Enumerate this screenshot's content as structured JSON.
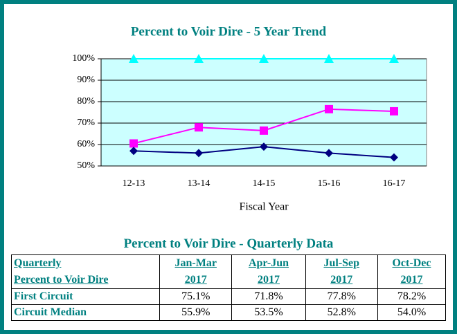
{
  "chart_data": {
    "type": "line",
    "title": "Percent to Voir Dire - 5 Year Trend",
    "x_label": "Fiscal Year",
    "categories": [
      "12-13",
      "13-14",
      "14-15",
      "15-16",
      "16-17"
    ],
    "series": [
      {
        "color": "#00ffff",
        "marker": "triangle",
        "values": [
          100,
          100,
          100,
          100,
          100
        ]
      },
      {
        "color": "#ff00ff",
        "marker": "square",
        "values": [
          60.5,
          68,
          66.5,
          76.5,
          75.5
        ]
      },
      {
        "color": "#000080",
        "marker": "diamond",
        "values": [
          57,
          56,
          59,
          56,
          54
        ]
      }
    ],
    "ylim": [
      50,
      100
    ],
    "yticks": [
      {
        "value": 50,
        "label": "50%"
      },
      {
        "value": 60,
        "label": "60%"
      },
      {
        "value": 70,
        "label": "70%"
      },
      {
        "value": 80,
        "label": "80%"
      },
      {
        "value": 90,
        "label": "90%"
      },
      {
        "value": 100,
        "label": "100%"
      }
    ],
    "grid": true,
    "plot_background": "#ccffff"
  },
  "table": {
    "title": "Percent to Voir Dire - Quarterly Data",
    "header": [
      [
        "Quarterly",
        "Percent to Voir Dire"
      ],
      [
        "Jan-Mar",
        "2017"
      ],
      [
        "Apr-Jun",
        "2017"
      ],
      [
        "Jul-Sep",
        "2017"
      ],
      [
        "Oct-Dec",
        "2017"
      ]
    ],
    "rows": [
      [
        "First Circuit",
        "75.1%",
        "71.8%",
        "77.8%",
        "78.2%"
      ],
      [
        "Circuit Median",
        "55.9%",
        "53.5%",
        "52.8%",
        "54.0%"
      ]
    ]
  }
}
